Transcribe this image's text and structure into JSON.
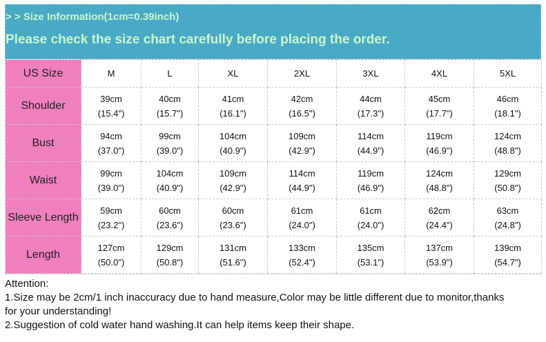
{
  "header": {
    "title": "> > Size Information(1cm=0.39inch)",
    "notice": "Please check the size chart carefully before placing the order."
  },
  "colors": {
    "header_band": "#4aa9c5",
    "header_text": "#c8f7cc",
    "label_column": "#f07fbe"
  },
  "table": {
    "header_label": "US Size",
    "sizes": [
      "M",
      "L",
      "XL",
      "2XL",
      "3XL",
      "4XL",
      "5XL"
    ],
    "rows": [
      {
        "label": "Shoulder",
        "cm": [
          "39cm",
          "40cm",
          "41cm",
          "42cm",
          "44cm",
          "45cm",
          "46cm"
        ],
        "inch": [
          "(15.4\")",
          "(15.7\")",
          "(16.1\")",
          "(16.5\")",
          "(17.3\")",
          "(17.7\")",
          "(18.1\")"
        ]
      },
      {
        "label": "Bust",
        "cm": [
          "94cm",
          "99cm",
          "104cm",
          "109cm",
          "114cm",
          "119cm",
          "124cm"
        ],
        "inch": [
          "(37.0\")",
          "(39.0\")",
          "(40.9\")",
          "(42.9\")",
          "(44.9\")",
          "(46.9\")",
          "(48.8\")"
        ]
      },
      {
        "label": "Waist",
        "cm": [
          "99cm",
          "104cm",
          "109cm",
          "114cm",
          "119cm",
          "124cm",
          "129cm"
        ],
        "inch": [
          "(39.0\")",
          "(40.9\")",
          "(42.9\")",
          "(44.9\")",
          "(46.9\")",
          "(48.8\")",
          "(50.8\")"
        ]
      },
      {
        "label": "Sleeve Length",
        "cm": [
          "59cm",
          "60cm",
          "60cm",
          "61cm",
          "61cm",
          "62cm",
          "63cm"
        ],
        "inch": [
          "(23.2\")",
          "(23.6\")",
          "(23.6\")",
          "(24.0\")",
          "(24.0\")",
          "(24.4\")",
          "(24.8\")"
        ]
      },
      {
        "label": "Length",
        "cm": [
          "127cm",
          "129cm",
          "131cm",
          "133cm",
          "135cm",
          "137cm",
          "139cm"
        ],
        "inch": [
          "(50.0\")",
          "(50.8\")",
          "(51.6\")",
          "(52.4\")",
          "(53.1\")",
          "(53.9\")",
          "(54.7\")"
        ]
      }
    ]
  },
  "attention": {
    "title": "Attention:",
    "line1": "1.Size may be 2cm/1 inch inaccuracy due to hand measure,Color may be little different due to monitor,thanks",
    "line1b": " for your understanding!",
    "line2": "2.Suggestion of cold water hand washing.It can help items keep their shape."
  }
}
